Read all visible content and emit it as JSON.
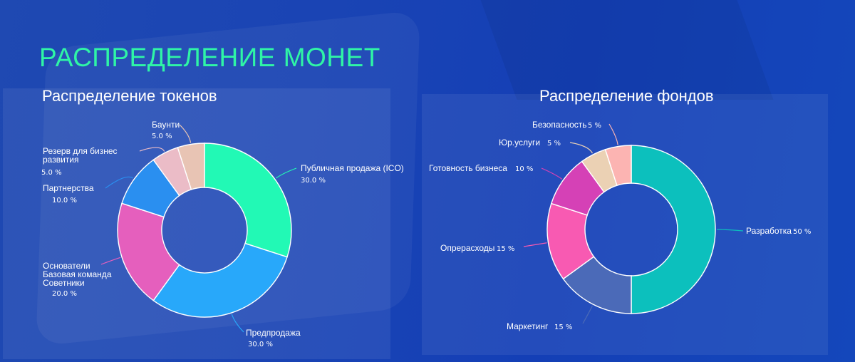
{
  "page": {
    "title": "РАСПРЕДЕЛЕНИЕ МОНЕТ"
  },
  "chart_data": [
    {
      "type": "pie",
      "title": "Распределение токенов",
      "slices": [
        {
          "name": "Публичная продажа (ICO)",
          "value": 30.0,
          "label": "30.0 %",
          "color": "#22f9b5"
        },
        {
          "name": "Предпродажа",
          "value": 30.0,
          "label": "30.0 %",
          "color": "#28a8fa"
        },
        {
          "name": "Основатели\nБазовая команда\nСоветники",
          "value": 20.0,
          "label": "20.0 %",
          "color": "#e55fbd"
        },
        {
          "name": "Партнерства",
          "value": 10.0,
          "label": "10.0 %",
          "color": "#2a8ff0"
        },
        {
          "name": "Резерв для бизнес\nразвития",
          "value": 5.0,
          "label": "5.0 %",
          "color": "#ebbcc7"
        },
        {
          "name": "Баунти",
          "value": 5.0,
          "label": "5.0 %",
          "color": "#e8c4b4"
        }
      ]
    },
    {
      "type": "pie",
      "title": "Распределение фондов",
      "slices": [
        {
          "name": "Разработка",
          "value": 50,
          "label": "50 %",
          "color": "#0cc0bd"
        },
        {
          "name": "Маркетинг",
          "value": 15,
          "label": "15 %",
          "color": "#4b6ab8"
        },
        {
          "name": "Опрерасходы",
          "value": 15,
          "label": "15 %",
          "color": "#f85ab2"
        },
        {
          "name": "Готовность бизнеса",
          "value": 10,
          "label": "10 %",
          "color": "#d541b6"
        },
        {
          "name": "Юр.услуги",
          "value": 5,
          "label": "5 %",
          "color": "#ebd1b4"
        },
        {
          "name": "Безопасность",
          "value": 5,
          "label": "5 %",
          "color": "#fcb4b2"
        }
      ]
    }
  ]
}
